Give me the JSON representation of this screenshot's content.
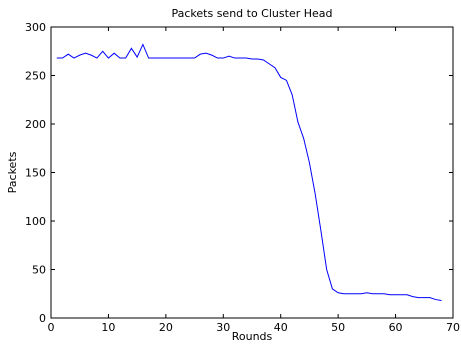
{
  "chart_data": {
    "type": "line",
    "title": "Packets send to Cluster Head",
    "xlabel": "Rounds",
    "ylabel": "Packets",
    "xlim": [
      0,
      70
    ],
    "ylim": [
      0,
      300
    ],
    "xticks": [
      0,
      10,
      20,
      30,
      40,
      50,
      60,
      70
    ],
    "yticks": [
      0,
      50,
      100,
      150,
      200,
      250,
      300
    ],
    "grid": false,
    "series_color": "#0000ff",
    "series": [
      {
        "x": [
          1,
          2,
          3,
          4,
          5,
          6,
          7,
          8,
          9,
          10,
          11,
          12,
          13,
          14,
          15,
          16,
          17,
          18,
          19,
          20,
          21,
          22,
          23,
          24,
          25,
          26,
          27,
          28,
          29,
          30,
          31,
          32,
          33,
          34,
          35,
          36,
          37,
          38,
          39,
          40,
          41,
          42,
          43,
          44,
          45,
          46,
          47,
          48,
          49,
          50,
          51,
          52,
          53,
          54,
          55,
          56,
          57,
          58,
          59,
          60,
          61,
          62,
          63,
          64,
          65,
          66,
          67,
          68
        ],
        "values": [
          268,
          268,
          272,
          268,
          271,
          273,
          271,
          268,
          275,
          268,
          273,
          268,
          268,
          278,
          269,
          282,
          268,
          268,
          268,
          268,
          268,
          268,
          268,
          268,
          268,
          272,
          273,
          271,
          268,
          268,
          270,
          268,
          268,
          268,
          267,
          267,
          266,
          262,
          258,
          248,
          245,
          230,
          202,
          185,
          160,
          128,
          90,
          50,
          30,
          26,
          25,
          25,
          25,
          25,
          26,
          25,
          25,
          25,
          24,
          24,
          24,
          24,
          22,
          21,
          21,
          21,
          19,
          18
        ]
      }
    ]
  }
}
